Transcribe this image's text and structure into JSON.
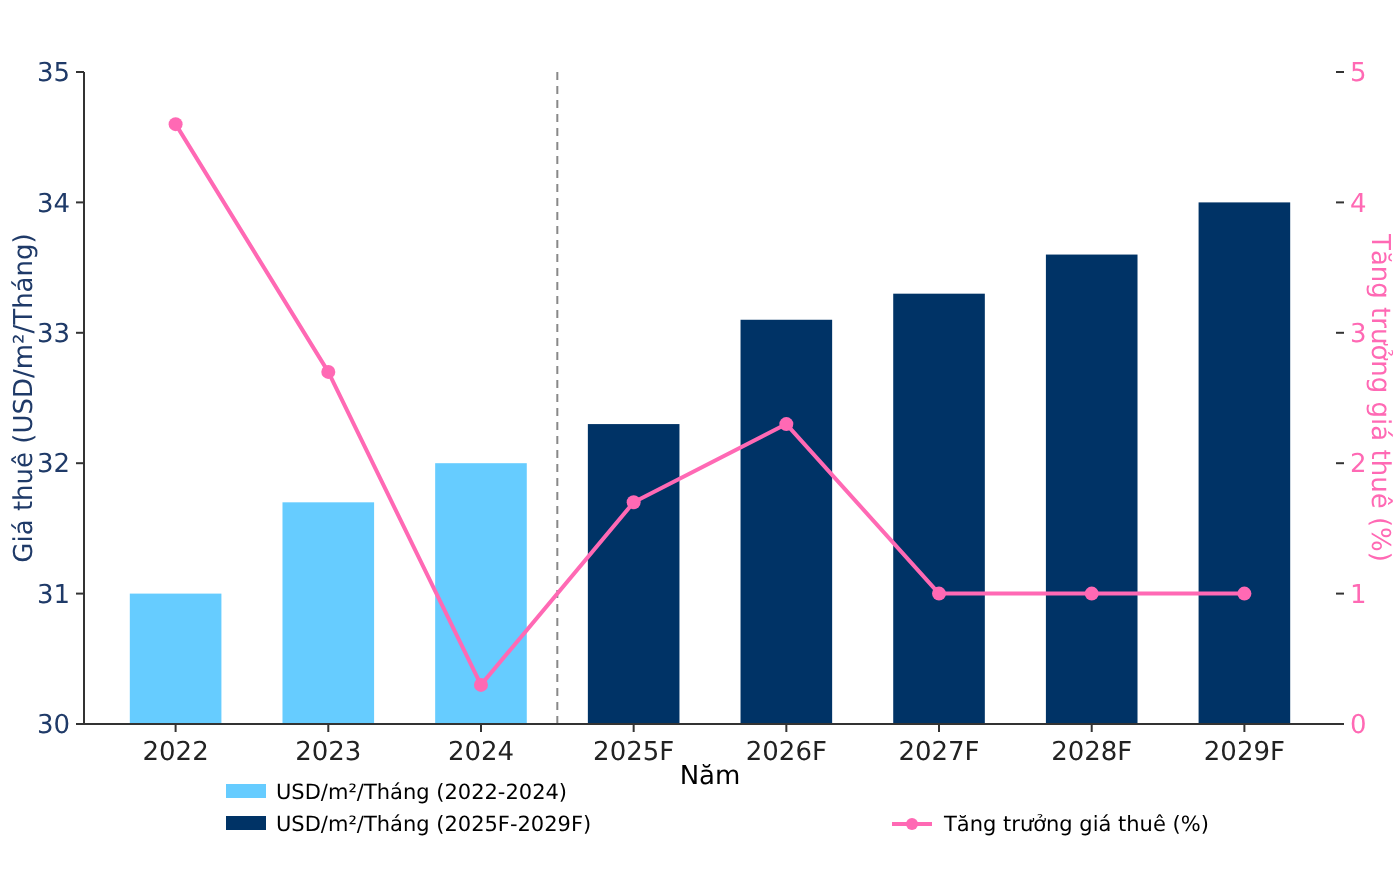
{
  "chart_data": {
    "type": "bar",
    "xlabel": "Năm",
    "ylabel": "Giá thuê (USD/m²/Tháng)",
    "y2label": "Tăng trưởng giá thuê (%)",
    "categories": [
      "2022",
      "2023",
      "2024",
      "2025F",
      "2026F",
      "2027F",
      "2028F",
      "2029F"
    ],
    "series": [
      {
        "name": "USD/m²/Tháng (2022-2024)",
        "color": "#66ccff",
        "values": [
          31.0,
          31.7,
          32.0,
          null,
          null,
          null,
          null,
          null
        ]
      },
      {
        "name": "USD/m²/Tháng (2025F-2029F)",
        "color": "#003366",
        "values": [
          null,
          null,
          null,
          32.3,
          33.1,
          33.3,
          33.6,
          34.0
        ]
      },
      {
        "name": "Tăng trưởng giá thuê (%)",
        "type": "line",
        "axis": "y2",
        "color": "#ff69b4",
        "marker": "circle",
        "values": [
          4.6,
          2.7,
          0.3,
          1.7,
          2.3,
          1.0,
          1.0,
          1.0
        ]
      }
    ],
    "ylim": [
      30,
      35
    ],
    "yticks": [
      30,
      31,
      32,
      33,
      34,
      35
    ],
    "y2lim": [
      0,
      5
    ],
    "y2ticks": [
      0,
      1,
      2,
      3,
      4,
      5
    ],
    "grid": false,
    "legend": "bottom"
  }
}
